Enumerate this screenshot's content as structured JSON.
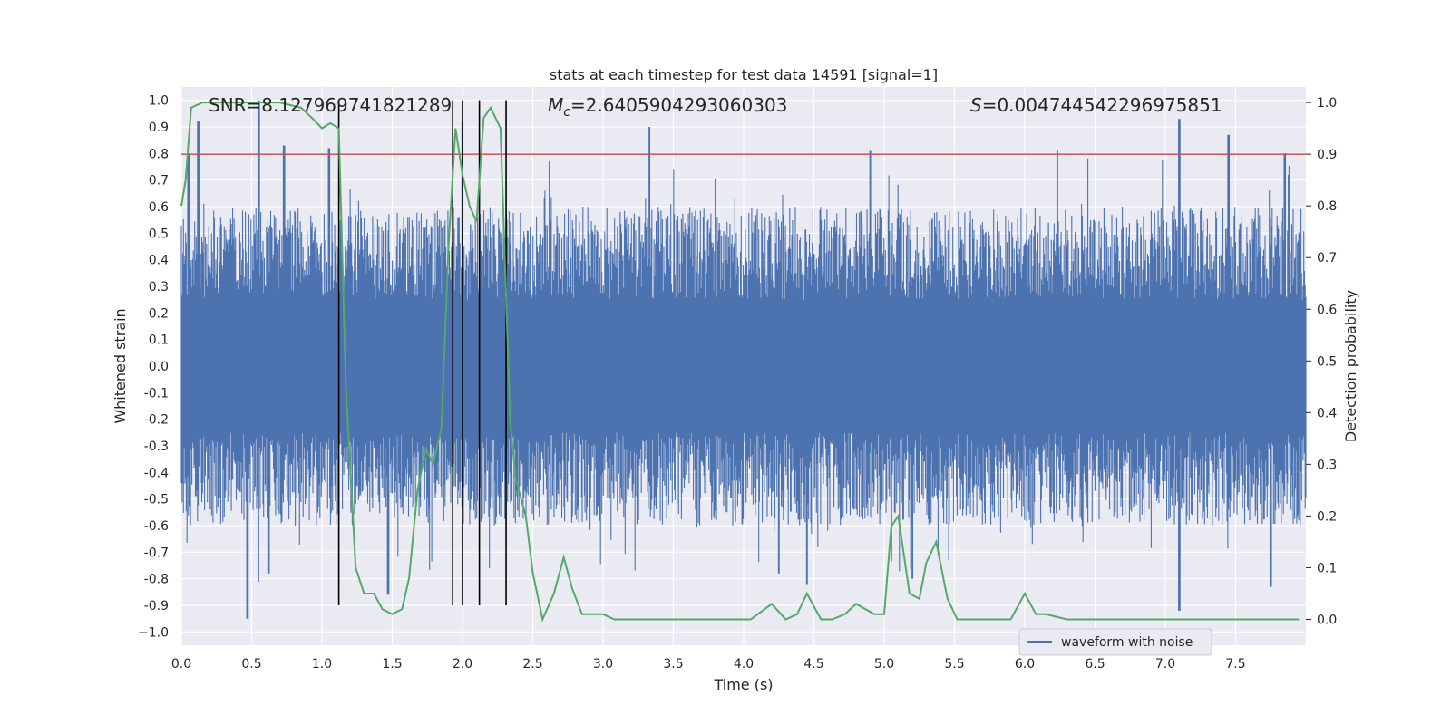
{
  "chart_data": {
    "type": "line",
    "title": "stats at each timestep for test data 14591 [signal=1]",
    "xlabel": "Time (s)",
    "ylabel": "Whitened strain",
    "y2label": "Detection probability",
    "xlim": [
      0.0,
      8.0
    ],
    "ylim": [
      -1.05,
      1.05
    ],
    "y2lim": [
      -0.05,
      1.03
    ],
    "xticks": [
      "0.0",
      "0.5",
      "1.0",
      "1.5",
      "2.0",
      "2.5",
      "3.0",
      "3.5",
      "4.0",
      "4.5",
      "5.0",
      "5.5",
      "6.0",
      "6.5",
      "7.0",
      "7.5"
    ],
    "xtick_values": [
      0,
      0.5,
      1,
      1.5,
      2,
      2.5,
      3,
      3.5,
      4,
      4.5,
      5,
      5.5,
      6,
      6.5,
      7,
      7.5
    ],
    "yticks": [
      "1.0",
      "0.9",
      "0.8",
      "0.7",
      "0.6",
      "0.5",
      "0.4",
      "0.3",
      "0.2",
      "0.1",
      "0.0",
      "-0.1",
      "-0.2",
      "-0.3",
      "-0.4",
      "-0.5",
      "-0.6",
      "-0.7",
      "-0.8",
      "-0.9",
      "−1.0"
    ],
    "ytick_values": [
      1.0,
      0.9,
      0.8,
      0.7,
      0.6,
      0.5,
      0.4,
      0.3,
      0.2,
      0.1,
      0.0,
      -0.1,
      -0.2,
      -0.3,
      -0.4,
      -0.5,
      -0.6,
      -0.7,
      -0.8,
      -0.9,
      -1.0
    ],
    "y2ticks": [
      "1.0",
      "0.9",
      "0.8",
      "0.7",
      "0.6",
      "0.5",
      "0.4",
      "0.3",
      "0.2",
      "0.1",
      "0.0"
    ],
    "y2tick_values": [
      1.0,
      0.9,
      0.8,
      0.7,
      0.6,
      0.5,
      0.4,
      0.3,
      0.2,
      0.1,
      0.0
    ],
    "annotations": {
      "snr": "SNR=8.127969741821289",
      "mc_symbol": "M",
      "mc_sub": "c",
      "mc_value": "=2.6405904293060303",
      "s_symbol": "S",
      "s_value": "=0.004744542296975851"
    },
    "threshold": {
      "value": 0.9,
      "axis": "y2",
      "color": "#c44e52"
    },
    "vertical_lines": [
      1.12,
      1.93,
      2.0,
      2.12,
      2.31
    ],
    "legend": {
      "label": "waveform with noise",
      "position": "lower-center-right"
    },
    "series": [
      {
        "name": "waveform with noise",
        "axis": "y",
        "color": "#4c72b0",
        "style": "dense noisy strain",
        "base_range": [
          -0.4,
          0.6
        ],
        "peaks": [
          [
            0.05,
            0.8
          ],
          [
            0.12,
            0.92
          ],
          [
            0.55,
            1.0
          ],
          [
            0.73,
            0.83
          ],
          [
            1.05,
            0.82
          ],
          [
            2.0,
            0.92
          ],
          [
            2.62,
            0.77
          ],
          [
            3.33,
            0.9
          ],
          [
            4.9,
            0.81
          ],
          [
            6.23,
            0.81
          ],
          [
            7.1,
            0.93
          ],
          [
            7.45,
            0.87
          ],
          [
            7.85,
            0.8
          ]
        ],
        "troughs": [
          [
            0.47,
            -0.95
          ],
          [
            0.62,
            -0.78
          ],
          [
            1.47,
            -0.86
          ],
          [
            4.25,
            -0.78
          ],
          [
            4.45,
            -0.82
          ],
          [
            5.2,
            -0.8
          ],
          [
            7.1,
            -0.92
          ],
          [
            7.75,
            -0.83
          ]
        ]
      },
      {
        "name": "detection probability",
        "axis": "y2",
        "color": "#55a868",
        "x": [
          0.0,
          0.03,
          0.07,
          0.15,
          0.3,
          0.5,
          0.7,
          0.85,
          0.93,
          1.0,
          1.06,
          1.12,
          1.17,
          1.24,
          1.3,
          1.37,
          1.43,
          1.5,
          1.57,
          1.62,
          1.68,
          1.74,
          1.79,
          1.85,
          1.9,
          1.95,
          2.0,
          2.05,
          2.1,
          2.15,
          2.2,
          2.27,
          2.34,
          2.38,
          2.45,
          2.5,
          2.57,
          2.65,
          2.72,
          2.78,
          2.85,
          2.92,
          3.0,
          3.08,
          3.2,
          3.4,
          3.6,
          3.75,
          3.9,
          4.05,
          4.2,
          4.3,
          4.38,
          4.45,
          4.55,
          4.63,
          4.72,
          4.8,
          4.93,
          5.0,
          5.05,
          5.1,
          5.18,
          5.25,
          5.3,
          5.37,
          5.45,
          5.52,
          5.6,
          5.75,
          5.9,
          6.0,
          6.08,
          6.15,
          6.3,
          6.45,
          6.6,
          6.8,
          7.0,
          7.2,
          7.4,
          7.5,
          7.6,
          7.75,
          7.95
        ],
        "y": [
          0.8,
          0.85,
          0.99,
          1.0,
          1.0,
          1.0,
          1.0,
          0.99,
          0.97,
          0.95,
          0.96,
          0.95,
          0.45,
          0.1,
          0.05,
          0.05,
          0.02,
          0.01,
          0.02,
          0.08,
          0.25,
          0.33,
          0.3,
          0.37,
          0.72,
          0.95,
          0.86,
          0.8,
          0.77,
          0.97,
          0.99,
          0.95,
          0.38,
          0.27,
          0.2,
          0.09,
          0.0,
          0.05,
          0.12,
          0.06,
          0.01,
          0.01,
          0.01,
          0.0,
          0.0,
          0.0,
          0.0,
          0.0,
          0.0,
          0.0,
          0.03,
          0.0,
          0.01,
          0.05,
          0.0,
          0.0,
          0.01,
          0.03,
          0.01,
          0.01,
          0.18,
          0.2,
          0.05,
          0.04,
          0.11,
          0.15,
          0.04,
          0.0,
          0.0,
          0.0,
          0.0,
          0.05,
          0.01,
          0.01,
          0.0,
          0.0,
          0.0,
          0.0,
          0.0,
          0.0,
          0.0,
          0.0,
          0.0,
          0.0,
          0.0
        ]
      }
    ]
  }
}
